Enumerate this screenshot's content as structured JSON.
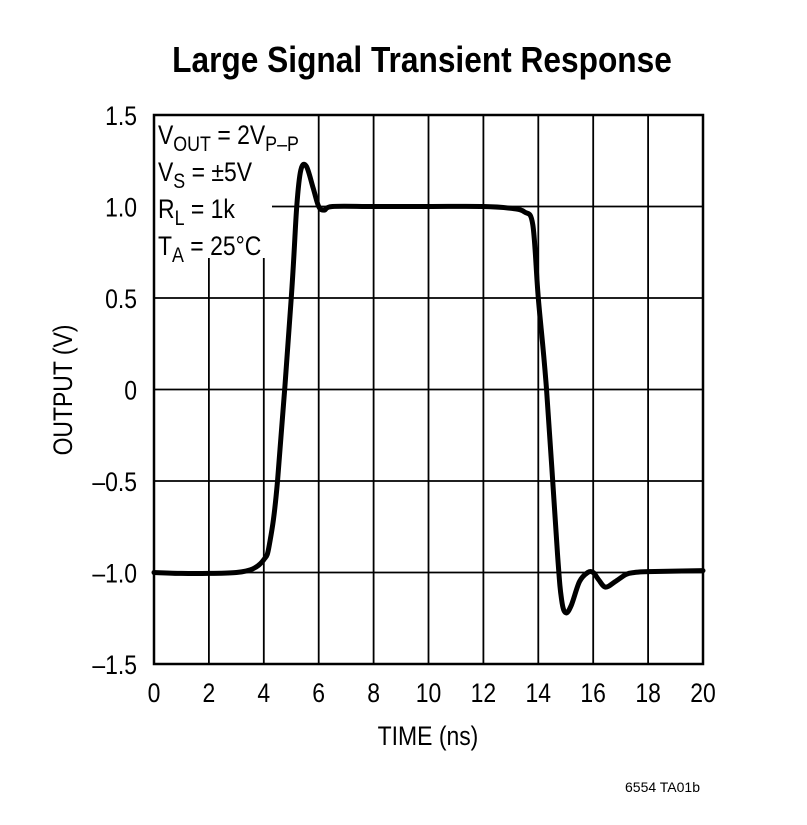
{
  "chart_data": {
    "type": "line",
    "title": "Large Signal Transient Response",
    "xlabel": "TIME (ns)",
    "ylabel": "OUTPUT (V)",
    "xlim": [
      0,
      20
    ],
    "ylim": [
      -1.5,
      1.5
    ],
    "grid": true,
    "x_ticks": [
      0,
      2,
      4,
      6,
      8,
      10,
      12,
      14,
      16,
      18,
      20
    ],
    "x_tick_labels": [
      "0",
      "2",
      "4",
      "6",
      "8",
      "10",
      "12",
      "14",
      "16",
      "18",
      "20"
    ],
    "y_ticks": [
      1.5,
      1.0,
      0.5,
      0,
      -0.5,
      -1.0,
      -1.5
    ],
    "y_tick_labels": [
      "1.5",
      "1.0",
      "0.5",
      "0",
      "–0.5",
      "–1.0",
      "–1.5"
    ],
    "annotations": [
      {
        "main": "V",
        "sub": "OUT",
        "rest": " = 2V",
        "sub2": "P–P"
      },
      {
        "main": "V",
        "sub": "S",
        "rest": " = ±5V",
        "sub2": ""
      },
      {
        "main": "R",
        "sub": "L",
        "rest": " = 1k",
        "sub2": ""
      },
      {
        "main": "T",
        "sub": "A",
        "rest": " = 25°C",
        "sub2": ""
      }
    ],
    "series": [
      {
        "name": "Output",
        "color": "#000000",
        "x": [
          0,
          1,
          2,
          3,
          3.6,
          4,
          4.2,
          4.5,
          5.0,
          5.2,
          5.35,
          5.55,
          5.8,
          6.0,
          6.2,
          6.5,
          8,
          10,
          12,
          13,
          13.5,
          13.8,
          14.0,
          14.3,
          14.7,
          14.85,
          15.0,
          15.2,
          15.5,
          15.8,
          16.0,
          16.2,
          16.45,
          16.8,
          17.2,
          17.5,
          18,
          20
        ],
        "y": [
          -1.0,
          -1.005,
          -1.005,
          -1.0,
          -0.98,
          -0.93,
          -0.85,
          -0.5,
          0.5,
          1.0,
          1.2,
          1.22,
          1.1,
          1.0,
          0.98,
          1.0,
          1.0,
          1.0,
          1.0,
          0.99,
          0.97,
          0.9,
          0.5,
          0.0,
          -0.9,
          -1.15,
          -1.22,
          -1.18,
          -1.05,
          -1.0,
          -1.0,
          -1.04,
          -1.08,
          -1.05,
          -1.01,
          -1.0,
          -0.995,
          -0.99
        ]
      }
    ]
  },
  "footer_code": "6554 TA01b"
}
